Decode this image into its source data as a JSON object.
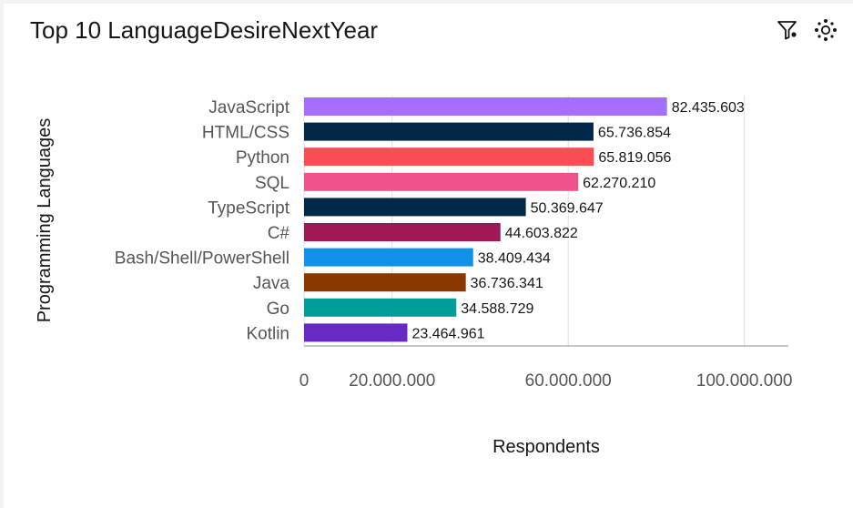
{
  "header": {
    "title": "Top 10 LanguageDesireNextYear",
    "filter_icon": "filter-icon",
    "settings_icon": "settings-icon"
  },
  "chart_data": {
    "type": "bar",
    "orientation": "horizontal",
    "title": "Top 10 LanguageDesireNextYear",
    "xlabel": "Respondents",
    "ylabel": "Programming Languages",
    "categories": [
      "JavaScript",
      "HTML/CSS",
      "Python",
      "SQL",
      "TypeScript",
      "C#",
      "Bash/Shell/PowerShell",
      "Java",
      "Go",
      "Kotlin"
    ],
    "values": [
      82435603,
      65736854,
      65819056,
      62270210,
      50369647,
      44603822,
      38409434,
      36736341,
      34588729,
      23464961
    ],
    "value_labels": [
      "82.435.603",
      "65.736.854",
      "65.819.056",
      "62.270.210",
      "50.369.647",
      "44.603.822",
      "38.409.434",
      "36.736.341",
      "34.588.729",
      "23.464.961"
    ],
    "colors": [
      "#a56eff",
      "#012749",
      "#fa4d56",
      "#ee538b",
      "#012749",
      "#9f1853",
      "#1192e8",
      "#8a3800",
      "#009d9a",
      "#6929c4"
    ],
    "x_ticks": [
      0,
      20000000,
      60000000,
      100000000
    ],
    "x_tick_labels": [
      "0",
      "20.000.000",
      "60.000.000",
      "100.000.000"
    ],
    "xlim": [
      0,
      110000000
    ],
    "grid": true,
    "legend": "none"
  }
}
